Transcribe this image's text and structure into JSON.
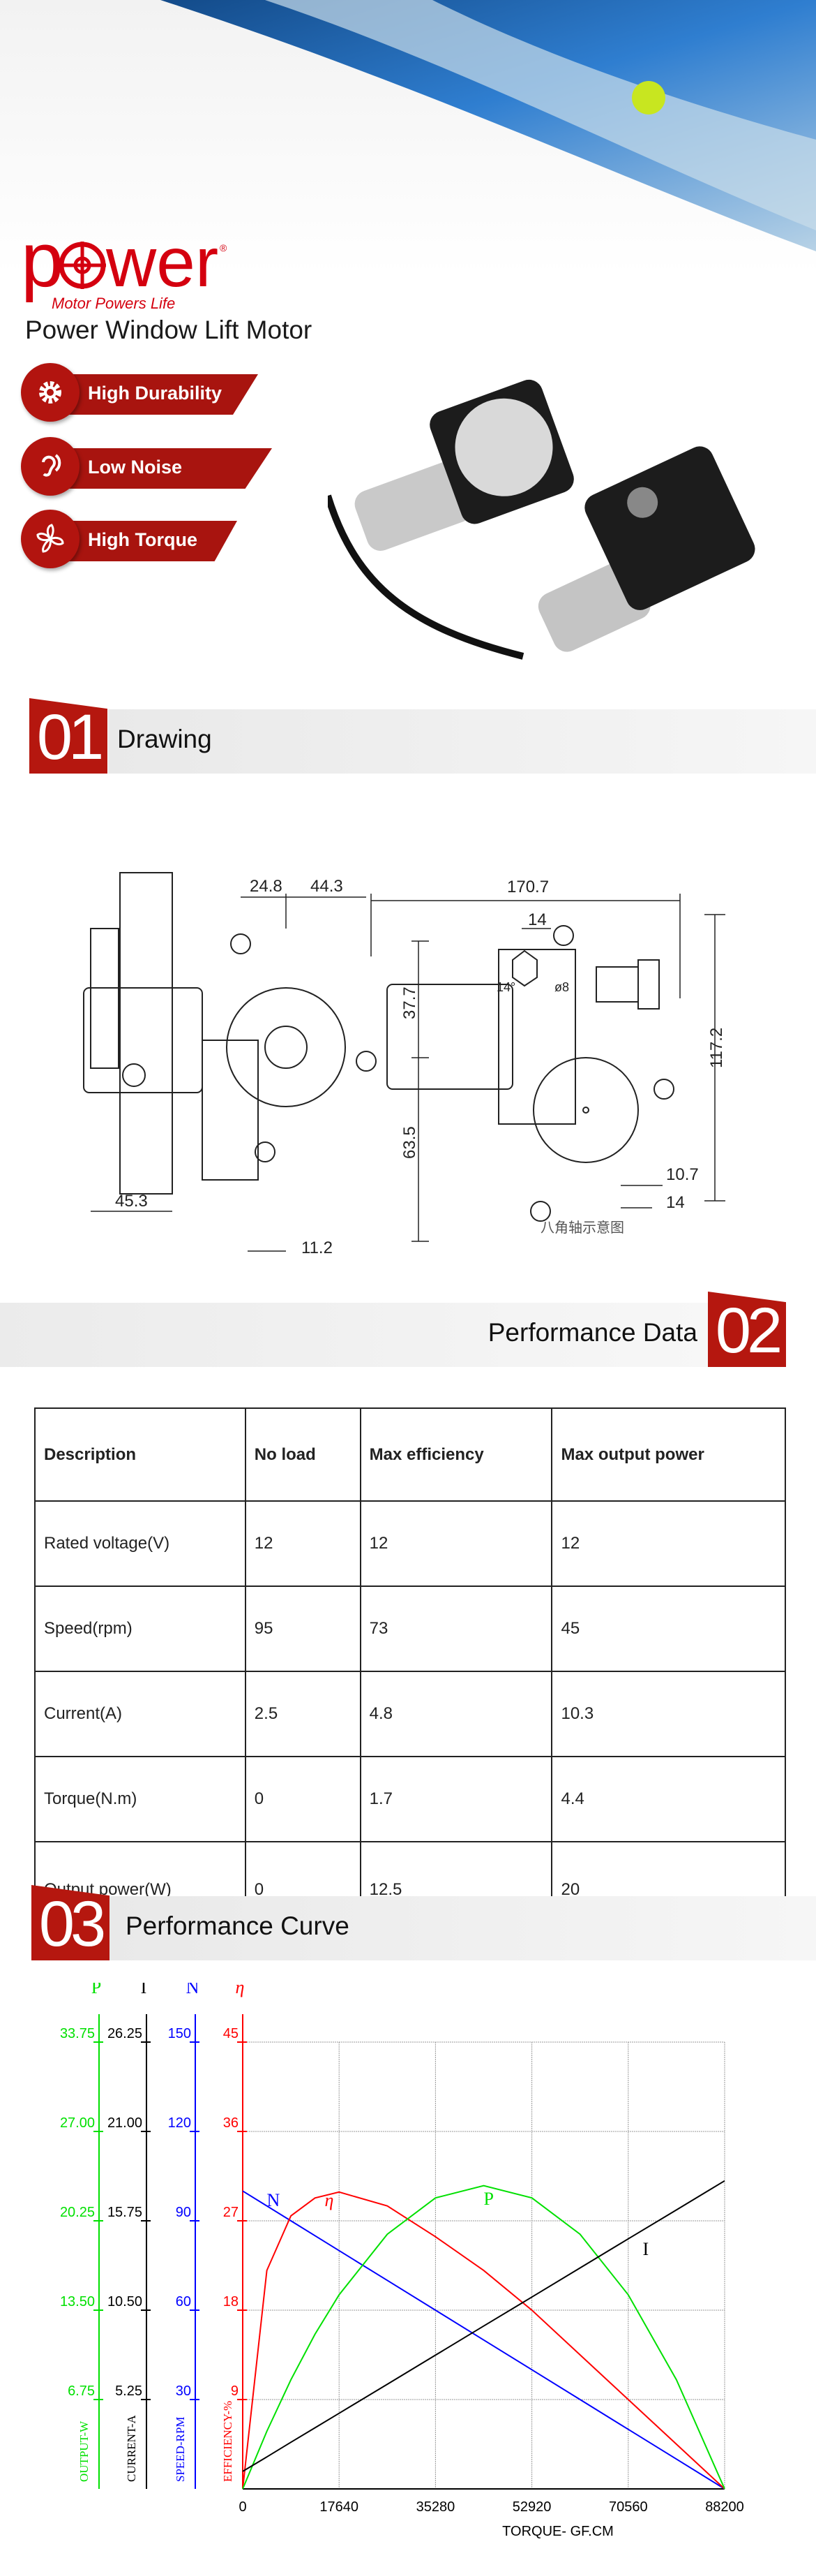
{
  "hero": {
    "logo_text": "power",
    "logo_tagline": "Motor Powers Life",
    "product_title": "Power Window Lift Motor",
    "features": [
      {
        "label": "High Durability",
        "icon": "gear-icon"
      },
      {
        "label": "Low Noise",
        "icon": "ear-icon"
      },
      {
        "label": "High Torque",
        "icon": "fan-icon"
      }
    ],
    "accent": "#b5170f"
  },
  "sections": [
    {
      "number": "01",
      "title": "Drawing"
    },
    {
      "number": "02",
      "title": "Performance Data"
    },
    {
      "number": "03",
      "title": "Performance Curve"
    }
  ],
  "drawing": {
    "dims": [
      "170.7",
      "117.2",
      "45.3",
      "24.8",
      "44.3",
      "37.7",
      "63.5",
      "11.2",
      "14",
      "14°",
      "ø8",
      "10.7",
      "14"
    ],
    "caption": "八角轴示意图"
  },
  "table": {
    "headers": [
      "Description",
      "No load",
      "Max efficiency",
      "Max output power"
    ],
    "rows": [
      [
        "Rated voltage(V)",
        "12",
        "12",
        "12"
      ],
      [
        "Speed(rpm)",
        "95",
        "73",
        "45"
      ],
      [
        "Current(A)",
        "2.5",
        "4.8",
        "10.3"
      ],
      [
        "Torque(N.m)",
        "0",
        "1.7",
        "4.4"
      ],
      [
        "Output power(W)",
        "0",
        "12.5",
        "20"
      ]
    ]
  },
  "chart_data": {
    "type": "line",
    "xlabel": "TORQUE- GF.CM",
    "xlim": [
      0,
      88200
    ],
    "xticks": [
      "0",
      "17640",
      "35280",
      "52920",
      "70560",
      "88200"
    ],
    "grid": true,
    "axes": [
      {
        "symbol": "P",
        "label": "OUTPUT-W",
        "color": "#00e000",
        "ticks": [
          "6.75",
          "13.50",
          "20.25",
          "27.00",
          "33.75"
        ],
        "lim": [
          0,
          33.75
        ]
      },
      {
        "symbol": "I",
        "label": "CURRENT-A",
        "color": "#000000",
        "ticks": [
          "5.25",
          "10.50",
          "15.75",
          "21.00",
          "26.25"
        ],
        "lim": [
          0,
          26.25
        ]
      },
      {
        "symbol": "N",
        "label": "SPEED-RPM",
        "color": "#0000ff",
        "ticks": [
          "30",
          "60",
          "90",
          "120",
          "150"
        ],
        "lim": [
          0,
          150
        ]
      },
      {
        "symbol": "η",
        "label": "EFFICIENCY-%",
        "color": "#ff0000",
        "ticks": [
          "9",
          "18",
          "27",
          "36",
          "45"
        ],
        "lim": [
          0,
          45
        ]
      }
    ],
    "x": [
      0,
      4410,
      8820,
      13230,
      17640,
      26460,
      35280,
      44100,
      52920,
      61740,
      70560,
      79380,
      88200
    ],
    "series": [
      {
        "name": "N",
        "axis": 2,
        "values": [
          100,
          95,
          90,
          85,
          80,
          70,
          60,
          50,
          40,
          30,
          20,
          10,
          0
        ]
      },
      {
        "name": "η",
        "axis": 3,
        "values": [
          0,
          22,
          27.5,
          29.3,
          29.9,
          28.5,
          25.4,
          22,
          18,
          13.5,
          9,
          4.5,
          0
        ]
      },
      {
        "name": "P",
        "axis": 0,
        "values": [
          0,
          4.35,
          8.24,
          11.68,
          14.66,
          19.24,
          21.98,
          22.9,
          21.98,
          19.24,
          14.66,
          8.24,
          0
        ]
      },
      {
        "name": "I",
        "axis": 1,
        "values": [
          1.03,
          1.88,
          2.74,
          3.59,
          4.44,
          6.15,
          7.86,
          9.57,
          11.27,
          12.98,
          14.69,
          16.39,
          18.1
        ]
      }
    ]
  }
}
